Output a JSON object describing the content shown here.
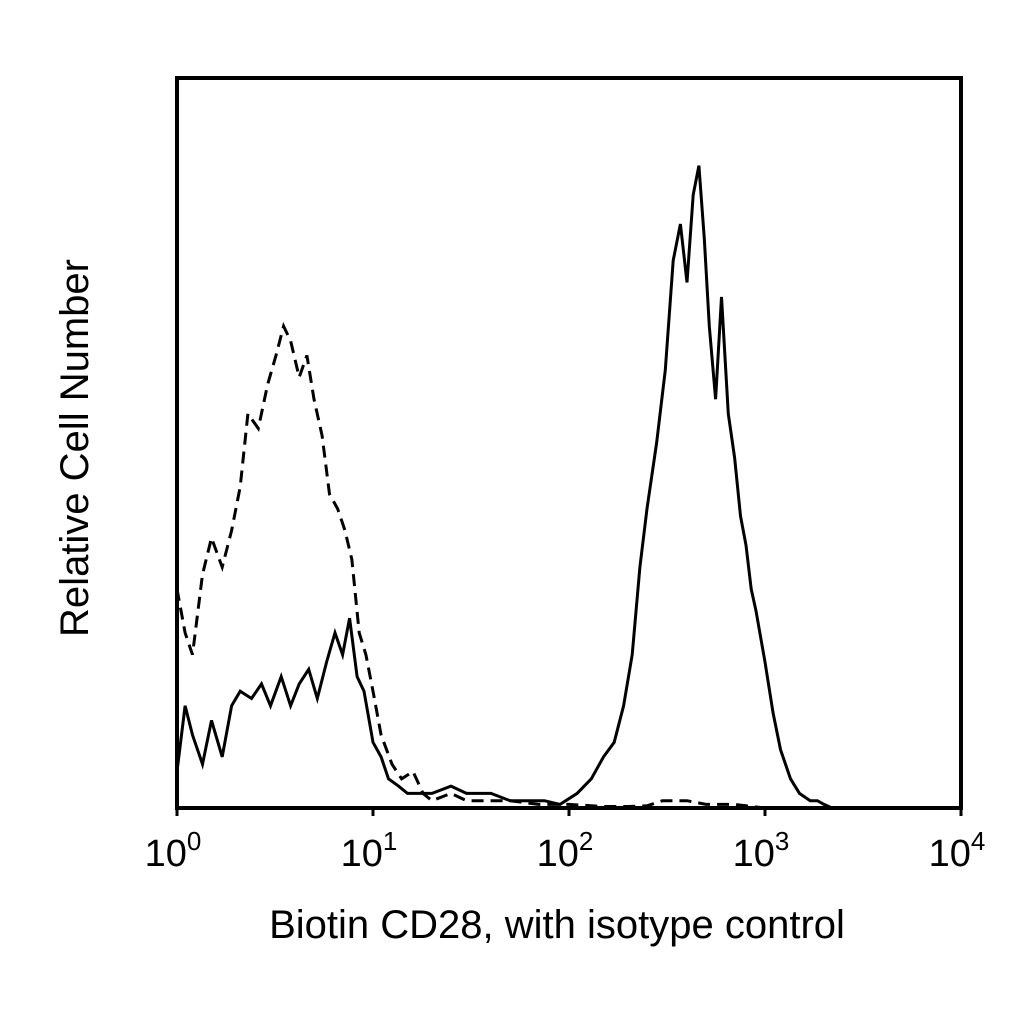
{
  "chart_data": {
    "type": "line",
    "title": "",
    "xlabel": "Biotin CD28, with isotype control",
    "ylabel": "Relative Cell Number",
    "x_scale": "log",
    "xlim": [
      1,
      10000
    ],
    "ylim": [
      0,
      100
    ],
    "y_ticks": "none",
    "grid": false,
    "x_ticks": [
      {
        "base": "10",
        "exp": "0",
        "value": 1
      },
      {
        "base": "10",
        "exp": "1",
        "value": 10
      },
      {
        "base": "10",
        "exp": "2",
        "value": 100
      },
      {
        "base": "10",
        "exp": "3",
        "value": 1000
      },
      {
        "base": "10",
        "exp": "4",
        "value": 10000
      }
    ],
    "series": [
      {
        "style": "dashed",
        "color": "#000000",
        "x": [
          1.0,
          1.1,
          1.2,
          1.35,
          1.5,
          1.7,
          1.9,
          2.1,
          2.3,
          2.6,
          2.9,
          3.2,
          3.5,
          3.8,
          4.2,
          4.6,
          5.0,
          5.5,
          6.0,
          6.6,
          7.2,
          7.8,
          8.5,
          9.2,
          10,
          11,
          12.5,
          14,
          16,
          18,
          20,
          25,
          30,
          40,
          50,
          70,
          100,
          130,
          150,
          200,
          250,
          300,
          400,
          500,
          700,
          1000
        ],
        "y": [
          30,
          24,
          21,
          32,
          37,
          33,
          38,
          44,
          54,
          52,
          58,
          62,
          66,
          64,
          59,
          62,
          56,
          51,
          43,
          41,
          38,
          34,
          24,
          21,
          16,
          10,
          6,
          4,
          5,
          2,
          1,
          2,
          1,
          1,
          1,
          0.5,
          0.5,
          0.3,
          0.2,
          0.2,
          0.3,
          1,
          1,
          0.5,
          0.5,
          0
        ]
      },
      {
        "style": "solid",
        "color": "#000000",
        "x": [
          1.0,
          1.1,
          1.2,
          1.35,
          1.5,
          1.7,
          1.9,
          2.1,
          2.4,
          2.7,
          3.0,
          3.4,
          3.8,
          4.2,
          4.7,
          5.2,
          5.8,
          6.4,
          7.0,
          7.6,
          8.3,
          9.0,
          10,
          11,
          12,
          13.5,
          15,
          17,
          20,
          25,
          30,
          40,
          50,
          60,
          75,
          90,
          110,
          130,
          150,
          170,
          190,
          210,
          230,
          250,
          280,
          310,
          340,
          370,
          400,
          430,
          460,
          490,
          520,
          560,
          600,
          650,
          700,
          750,
          800,
          850,
          900,
          1000,
          1100,
          1200,
          1350,
          1500,
          1700,
          1850,
          2000,
          2200,
          2400,
          2600
        ],
        "y": [
          5,
          14,
          10,
          6,
          12,
          7,
          14,
          16,
          15,
          17,
          14,
          18,
          14,
          17,
          19,
          15,
          20,
          24,
          21,
          26,
          18,
          16,
          9,
          7,
          4,
          3,
          2,
          2,
          2,
          3,
          2,
          2,
          1,
          1,
          1,
          0.5,
          2,
          4,
          7,
          9,
          14,
          21,
          33,
          41,
          50,
          60,
          75,
          80,
          72,
          84,
          88,
          78,
          66,
          56,
          70,
          54,
          48,
          40,
          36,
          30,
          27,
          20,
          13,
          8,
          4,
          2,
          1,
          1,
          0.5,
          0,
          0,
          0
        ]
      }
    ]
  }
}
